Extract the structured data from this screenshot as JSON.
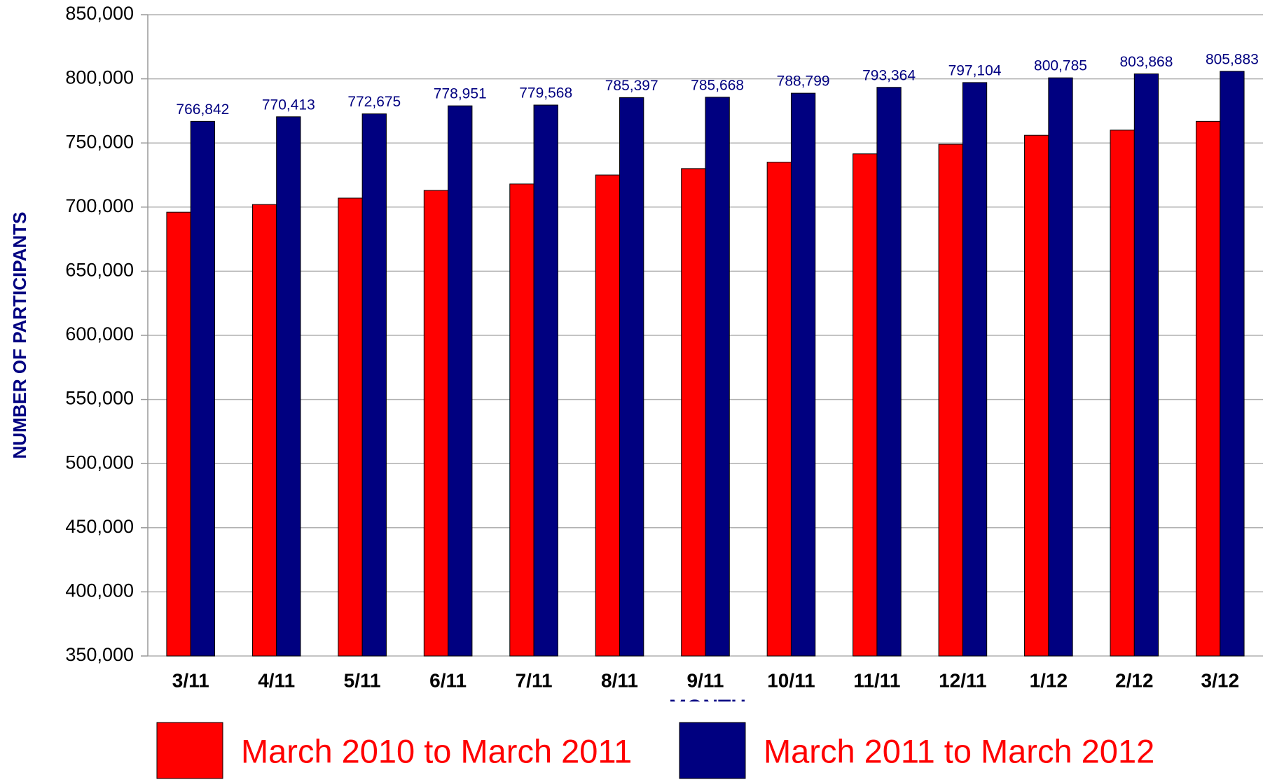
{
  "chart_data": {
    "type": "bar",
    "y_label": "NUMBER OF PARTICIPANTS",
    "x_label": "MONTH",
    "categories": [
      "3/11",
      "4/11",
      "5/11",
      "6/11",
      "7/11",
      "8/11",
      "9/11",
      "10/11",
      "11/11",
      "12/11",
      "1/12",
      "2/12",
      "3/12"
    ],
    "series": [
      {
        "name": "March 2010 to March 2011",
        "color": "#ff0000",
        "values": [
          696000,
          702000,
          707000,
          713000,
          718000,
          725000,
          730000,
          735000,
          741500,
          749000,
          756000,
          760000,
          766842
        ]
      },
      {
        "name": "March 2011 to March 2012",
        "color": "#000080",
        "values": [
          766842,
          770413,
          772675,
          778951,
          779568,
          785397,
          785668,
          788799,
          793364,
          797104,
          800785,
          803868,
          805883
        ],
        "value_labels": [
          "766,842",
          "770,413",
          "772,675",
          "778,951",
          "779,568",
          "785,397",
          "785,668",
          "788,799",
          "793,364",
          "797,104",
          "800,785",
          "803,868",
          "805,883"
        ]
      }
    ],
    "ylim": [
      350000,
      850000
    ],
    "yticks": [
      {
        "value": 350000,
        "label": "350,000"
      },
      {
        "value": 400000,
        "label": "400,000"
      },
      {
        "value": 450000,
        "label": "450,000"
      },
      {
        "value": 500000,
        "label": "500,000"
      },
      {
        "value": 550000,
        "label": "550,000"
      },
      {
        "value": 600000,
        "label": "600,000"
      },
      {
        "value": 650000,
        "label": "650,000"
      },
      {
        "value": 700000,
        "label": "700,000"
      },
      {
        "value": 750000,
        "label": "750,000"
      },
      {
        "value": 800000,
        "label": "800,000"
      },
      {
        "value": 850000,
        "label": "850,000"
      }
    ],
    "grid": true,
    "legend": "bottom"
  }
}
